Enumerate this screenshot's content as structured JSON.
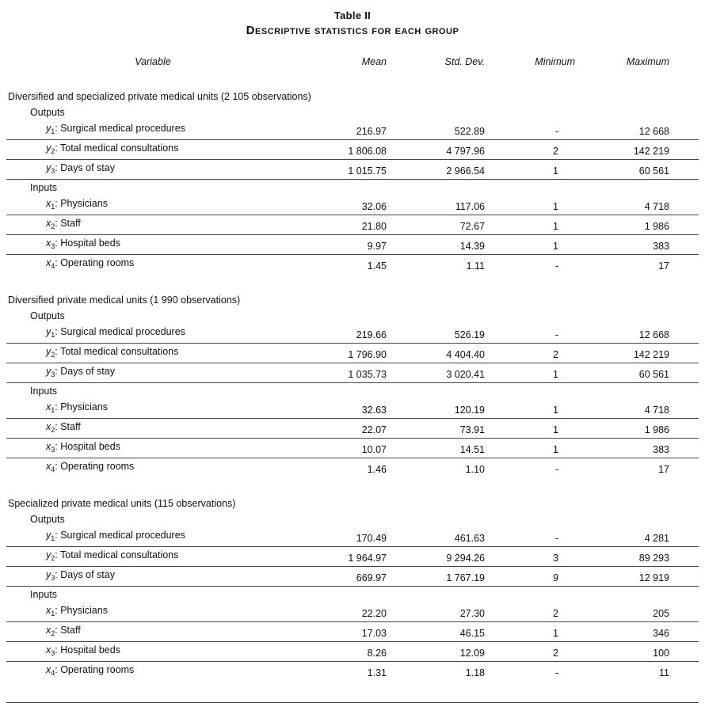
{
  "title": "Table II",
  "subtitle": "Descriptive statistics for each group",
  "columns": {
    "variable": "Variable",
    "mean": "Mean",
    "std": "Std. Dev.",
    "min": "Minimum",
    "max": "Maximum"
  },
  "colors": {
    "text": "#111111",
    "rule": "#444444",
    "background": "#ffffff"
  },
  "groups": [
    {
      "heading": "Diversified and specialized private medical units (2 105 observations)",
      "sections": [
        {
          "label": "Outputs",
          "rows": [
            {
              "symbol": "y",
              "sub": "1",
              "name": "Surgical medical procedures",
              "mean": "216.97",
              "std": "522.89",
              "min": "-",
              "max": "12 668"
            },
            {
              "symbol": "y",
              "sub": "2",
              "name": "Total medical consultations",
              "mean": "1 806.08",
              "std": "4 797.96",
              "min": "2",
              "max": "142 219"
            },
            {
              "symbol": "y",
              "sub": "3",
              "name": "Days of stay",
              "mean": "1 015.75",
              "std": "2 966.54",
              "min": "1",
              "max": "60 561"
            }
          ]
        },
        {
          "label": "Inputs",
          "rows": [
            {
              "symbol": "x",
              "sub": "1",
              "name": "Physicians",
              "mean": "32.06",
              "std": "117.06",
              "min": "1",
              "max": "4 718"
            },
            {
              "symbol": "x",
              "sub": "2",
              "name": "Staff",
              "mean": "21.80",
              "std": "72.67",
              "min": "1",
              "max": "1 986"
            },
            {
              "symbol": "x",
              "sub": "3",
              "name": "Hospital beds",
              "mean": "9.97",
              "std": "14.39",
              "min": "1",
              "max": "383"
            },
            {
              "symbol": "x",
              "sub": "4",
              "name": "Operating rooms",
              "mean": "1.45",
              "std": "1.11",
              "min": "-",
              "max": "17"
            }
          ]
        }
      ]
    },
    {
      "heading": "Diversified private medical units (1 990 observations)",
      "sections": [
        {
          "label": "Outputs",
          "rows": [
            {
              "symbol": "y",
              "sub": "1",
              "name": "Surgical medical procedures",
              "mean": "219.66",
              "std": "526.19",
              "min": "-",
              "max": "12 668"
            },
            {
              "symbol": "y",
              "sub": "2",
              "name": "Total medical consultations",
              "mean": "1 796.90",
              "std": "4 404.40",
              "min": "2",
              "max": "142 219"
            },
            {
              "symbol": "y",
              "sub": "3",
              "name": "Days of stay",
              "mean": "1 035.73",
              "std": "3 020.41",
              "min": "1",
              "max": "60 561"
            }
          ]
        },
        {
          "label": "Inputs",
          "rows": [
            {
              "symbol": "x",
              "sub": "1",
              "name": "Physicians",
              "mean": "32.63",
              "std": "120.19",
              "min": "1",
              "max": "4 718"
            },
            {
              "symbol": "x",
              "sub": "2",
              "name": "Staff",
              "mean": "22.07",
              "std": "73.91",
              "min": "1",
              "max": "1 986"
            },
            {
              "symbol": "x",
              "sub": "3",
              "name": "Hospital beds",
              "mean": "10.07",
              "std": "14.51",
              "min": "1",
              "max": "383"
            },
            {
              "symbol": "x",
              "sub": "4",
              "name": "Operating rooms",
              "mean": "1.46",
              "std": "1.10",
              "min": "-",
              "max": "17"
            }
          ]
        }
      ]
    },
    {
      "heading": "Specialized private medical units (115 observations)",
      "sections": [
        {
          "label": "Outputs",
          "rows": [
            {
              "symbol": "y",
              "sub": "1",
              "name": "Surgical medical procedures",
              "mean": "170.49",
              "std": "461.63",
              "min": "-",
              "max": "4 281"
            },
            {
              "symbol": "y",
              "sub": "2",
              "name": "Total medical consultations",
              "mean": "1 964.97",
              "std": "9 294.26",
              "min": "3",
              "max": "89 293"
            },
            {
              "symbol": "y",
              "sub": "3",
              "name": "Days of stay",
              "mean": "669.97",
              "std": "1 767.19",
              "min": "9",
              "max": "12 919"
            }
          ]
        },
        {
          "label": "Inputs",
          "rows": [
            {
              "symbol": "x",
              "sub": "1",
              "name": "Physicians",
              "mean": "22.20",
              "std": "27.30",
              "min": "2",
              "max": "205"
            },
            {
              "symbol": "x",
              "sub": "2",
              "name": "Staff",
              "mean": "17.03",
              "std": "46.15",
              "min": "1",
              "max": "346"
            },
            {
              "symbol": "x",
              "sub": "3",
              "name": "Hospital beds",
              "mean": "8.26",
              "std": "12.09",
              "min": "2",
              "max": "100"
            },
            {
              "symbol": "x",
              "sub": "4",
              "name": "Operating rooms",
              "mean": "1.31",
              "std": "1.18",
              "min": "-",
              "max": "11"
            }
          ]
        }
      ]
    }
  ]
}
